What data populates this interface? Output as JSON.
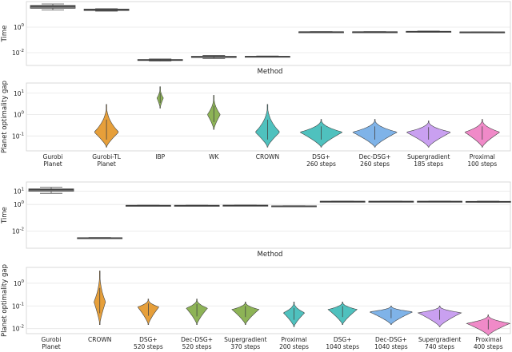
{
  "colors": {
    "box": "#808080",
    "orange": "#E69F3A",
    "green": "#8DB356",
    "teal": "#4FC1BE",
    "blue": "#7FB3E8",
    "purple": "#C9A0F0",
    "pink": "#F08AC8"
  },
  "chart_data": [
    {
      "type": "box",
      "panel": "top-time",
      "ylabel": "Time",
      "xlabel": "Method",
      "yscale": "log",
      "ylim": [
        0.001,
        100
      ],
      "yticks": [
        {
          "v": 1,
          "exp": "0"
        },
        {
          "v": 0.01,
          "exp": "-2"
        }
      ],
      "categories": [
        "Gurobi Planet",
        "Gurobi-TL Planet",
        "IBP",
        "WK",
        "CROWN",
        "DSG+ 260 steps",
        "Dec-DSG+ 260 steps",
        "Supergradient 185 steps",
        "Proximal 100 steps"
      ],
      "boxes": [
        {
          "min": 22,
          "q1": 30,
          "median": 42,
          "q3": 50,
          "max": 65
        },
        {
          "min": 18,
          "q1": 20,
          "median": 23,
          "q3": 26,
          "max": 28
        },
        {
          "min": 0.0022,
          "q1": 0.0025,
          "median": 0.0027,
          "q3": 0.0029,
          "max": 0.0032
        },
        {
          "min": 0.0035,
          "q1": 0.0042,
          "median": 0.0047,
          "q3": 0.0052,
          "max": 0.006
        },
        {
          "min": 0.0045,
          "q1": 0.0048,
          "median": 0.005,
          "q3": 0.0052,
          "max": 0.0055
        },
        {
          "min": 0.4,
          "q1": 0.41,
          "median": 0.42,
          "q3": 0.43,
          "max": 0.44
        },
        {
          "min": 0.4,
          "q1": 0.41,
          "median": 0.42,
          "q3": 0.43,
          "max": 0.44
        },
        {
          "min": 0.41,
          "q1": 0.43,
          "median": 0.45,
          "q3": 0.47,
          "max": 0.49
        },
        {
          "min": 0.38,
          "q1": 0.4,
          "median": 0.41,
          "q3": 0.42,
          "max": 0.43
        }
      ]
    },
    {
      "type": "violin",
      "panel": "top-gap",
      "ylabel": "Planet optimality gap",
      "yscale": "log",
      "ylim": [
        0.02,
        30
      ],
      "yticks": [
        {
          "v": 10,
          "exp": "1"
        },
        {
          "v": 1,
          "exp": "0"
        },
        {
          "v": 0.1,
          "exp": "-1"
        }
      ],
      "categories": [
        "Gurobi\nPlanet",
        "Gurobi-TL\nPlanet",
        "IBP",
        "WK",
        "CROWN",
        "DSG+\n260 steps",
        "Dec-DSG+\n260 steps",
        "Supergradient\n185 steps",
        "Proximal\n100 steps"
      ],
      "violins": [
        null,
        {
          "min": 0.03,
          "max": 3.0,
          "mode": 0.15,
          "halfwidth": 0.23,
          "color": "orange"
        },
        {
          "min": 2.0,
          "max": 20.0,
          "mode": 6.0,
          "halfwidth": 0.06,
          "color": "green"
        },
        {
          "min": 0.2,
          "max": 8.0,
          "mode": 1.0,
          "halfwidth": 0.12,
          "color": "green"
        },
        {
          "min": 0.03,
          "max": 3.0,
          "mode": 0.15,
          "halfwidth": 0.23,
          "color": "teal"
        },
        {
          "min": 0.03,
          "max": 0.6,
          "mode": 0.15,
          "halfwidth": 0.4,
          "color": "teal"
        },
        {
          "min": 0.03,
          "max": 0.6,
          "mode": 0.15,
          "halfwidth": 0.42,
          "color": "blue"
        },
        {
          "min": 0.03,
          "max": 0.5,
          "mode": 0.15,
          "halfwidth": 0.42,
          "color": "purple"
        },
        {
          "min": 0.03,
          "max": 0.6,
          "mode": 0.15,
          "halfwidth": 0.33,
          "color": "pink"
        }
      ]
    },
    {
      "type": "box",
      "panel": "bottom-time",
      "ylabel": "Time",
      "xlabel": "Method",
      "yscale": "log",
      "ylim": [
        0.0005,
        50
      ],
      "yticks": [
        {
          "v": 10,
          "exp": "1"
        },
        {
          "v": 1,
          "exp": "0"
        },
        {
          "v": 0.01,
          "exp": "-2"
        }
      ],
      "categories": [
        "Gurobi Planet",
        "CROWN",
        "DSG+ 520 steps",
        "Dec-DSG+ 520 steps",
        "Supergradient 370 steps",
        "Proximal 200 steps",
        "DSG+ 1040 steps",
        "Dec-DSG+ 1040 steps",
        "Supergradient 740 steps",
        "Proximal 400 steps"
      ],
      "boxes": [
        {
          "min": 7,
          "q1": 10,
          "median": 13,
          "q3": 15,
          "max": 20
        },
        {
          "min": 0.0028,
          "q1": 0.0029,
          "median": 0.003,
          "q3": 0.0031,
          "max": 0.0032
        },
        {
          "min": 0.8,
          "q1": 0.82,
          "median": 0.84,
          "q3": 0.86,
          "max": 0.88
        },
        {
          "min": 0.8,
          "q1": 0.82,
          "median": 0.84,
          "q3": 0.86,
          "max": 0.88
        },
        {
          "min": 0.8,
          "q1": 0.82,
          "median": 0.85,
          "q3": 0.88,
          "max": 0.9
        },
        {
          "min": 0.72,
          "q1": 0.75,
          "median": 0.77,
          "q3": 0.79,
          "max": 0.81
        },
        {
          "min": 1.6,
          "q1": 1.65,
          "median": 1.7,
          "q3": 1.75,
          "max": 1.8
        },
        {
          "min": 1.6,
          "q1": 1.65,
          "median": 1.7,
          "q3": 1.75,
          "max": 1.8
        },
        {
          "min": 1.6,
          "q1": 1.65,
          "median": 1.7,
          "q3": 1.75,
          "max": 1.8
        },
        {
          "min": 1.5,
          "q1": 1.58,
          "median": 1.65,
          "q3": 1.72,
          "max": 1.8
        }
      ]
    },
    {
      "type": "violin",
      "panel": "bottom-gap",
      "ylabel": "Planet optimality gap",
      "yscale": "log",
      "ylim": [
        0.006,
        5
      ],
      "yticks": [
        {
          "v": 1,
          "exp": "0"
        },
        {
          "v": 0.1,
          "exp": "-1"
        },
        {
          "v": 0.01,
          "exp": "-2"
        }
      ],
      "categories": [
        "Gurobi\nPlanet",
        "CROWN",
        "DSG+\n520 steps",
        "Dec-DSG+\n520 steps",
        "Supergradient\n370 steps",
        "Proximal\n200 steps",
        "DSG+\n1040 steps",
        "Dec-DSG+\n1040 steps",
        "Supergradient\n740 steps",
        "Proximal\n400 steps"
      ],
      "violins": [
        null,
        {
          "min": 0.015,
          "max": 3.5,
          "mode": 0.15,
          "halfwidth": 0.12,
          "color": "orange"
        },
        {
          "min": 0.015,
          "max": 0.2,
          "mode": 0.09,
          "halfwidth": 0.22,
          "color": "orange"
        },
        {
          "min": 0.015,
          "max": 0.2,
          "mode": 0.08,
          "halfwidth": 0.22,
          "color": "green"
        },
        {
          "min": 0.015,
          "max": 0.15,
          "mode": 0.07,
          "halfwidth": 0.28,
          "color": "green"
        },
        {
          "min": 0.012,
          "max": 0.15,
          "mode": 0.05,
          "halfwidth": 0.22,
          "color": "teal"
        },
        {
          "min": 0.015,
          "max": 0.15,
          "mode": 0.07,
          "halfwidth": 0.3,
          "color": "teal"
        },
        {
          "min": 0.015,
          "max": 0.1,
          "mode": 0.055,
          "halfwidth": 0.45,
          "color": "blue"
        },
        {
          "min": 0.012,
          "max": 0.1,
          "mode": 0.05,
          "halfwidth": 0.45,
          "color": "purple"
        },
        {
          "min": 0.005,
          "max": 0.04,
          "mode": 0.017,
          "halfwidth": 0.45,
          "color": "pink"
        }
      ]
    }
  ]
}
